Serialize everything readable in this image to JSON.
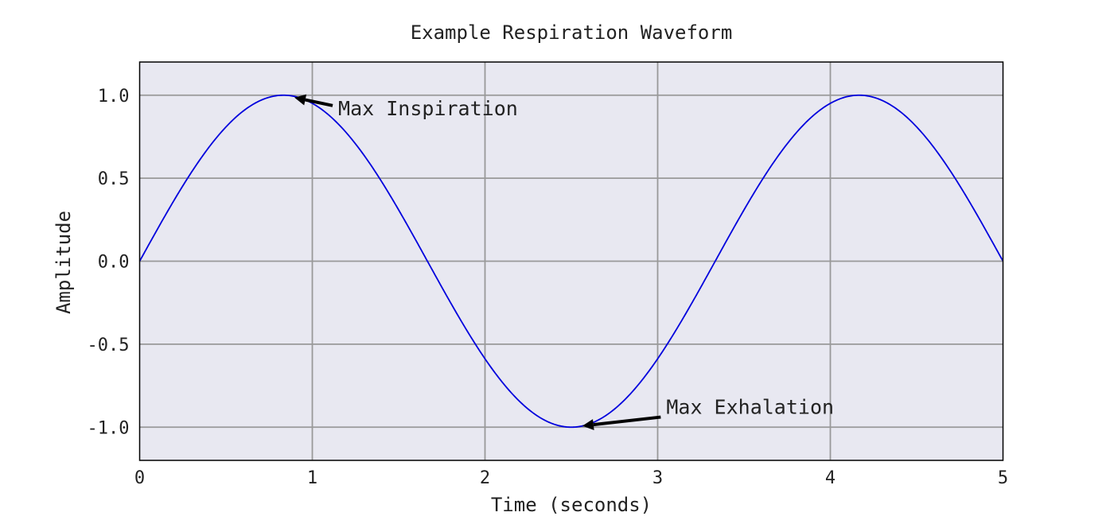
{
  "chart_data": {
    "type": "line",
    "title": "Example Respiration Waveform",
    "xlabel": "Time (seconds)",
    "ylabel": "Amplitude",
    "xlim": [
      0,
      5
    ],
    "ylim": [
      -1.2,
      1.2
    ],
    "x_ticks": [
      0,
      1,
      2,
      3,
      4,
      5
    ],
    "x_tick_labels": [
      "0",
      "1",
      "2",
      "3",
      "4",
      "5"
    ],
    "y_ticks": [
      1.0,
      0.5,
      0.0,
      -0.5,
      -1.0
    ],
    "y_tick_labels": [
      "1.0",
      "0.5",
      "0.0",
      "-0.5",
      "-1.0"
    ],
    "grid": true,
    "series": [
      {
        "color": "#0000dd",
        "function": "sin(2*pi*0.3*x)",
        "x": [
          0,
          0.25,
          0.5,
          0.833,
          1.0,
          1.25,
          1.5,
          1.667,
          2.0,
          2.25,
          2.5,
          2.75,
          3.0,
          3.333,
          3.5,
          3.75,
          4.0,
          4.167,
          4.5,
          4.75,
          5.0
        ],
        "y": [
          0,
          0.454,
          0.809,
          1.0,
          0.951,
          0.707,
          0.309,
          0.0,
          -0.588,
          -0.891,
          -1.0,
          -0.891,
          -0.588,
          0.0,
          0.309,
          0.707,
          0.951,
          1.0,
          0.809,
          0.454,
          0.0
        ]
      }
    ],
    "annotations": [
      {
        "text": "Max Inspiration",
        "point": [
          0.833,
          1.0
        ],
        "text_at": [
          1.15,
          0.88
        ]
      },
      {
        "text": "Max Exhalation",
        "point": [
          2.5,
          -1.0
        ],
        "text_at": [
          3.05,
          -0.92
        ]
      }
    ],
    "colors": {
      "plot_background": "#e8e8f1",
      "grid": "#999999",
      "line": "#0000dd",
      "arrow": "#000000"
    }
  }
}
